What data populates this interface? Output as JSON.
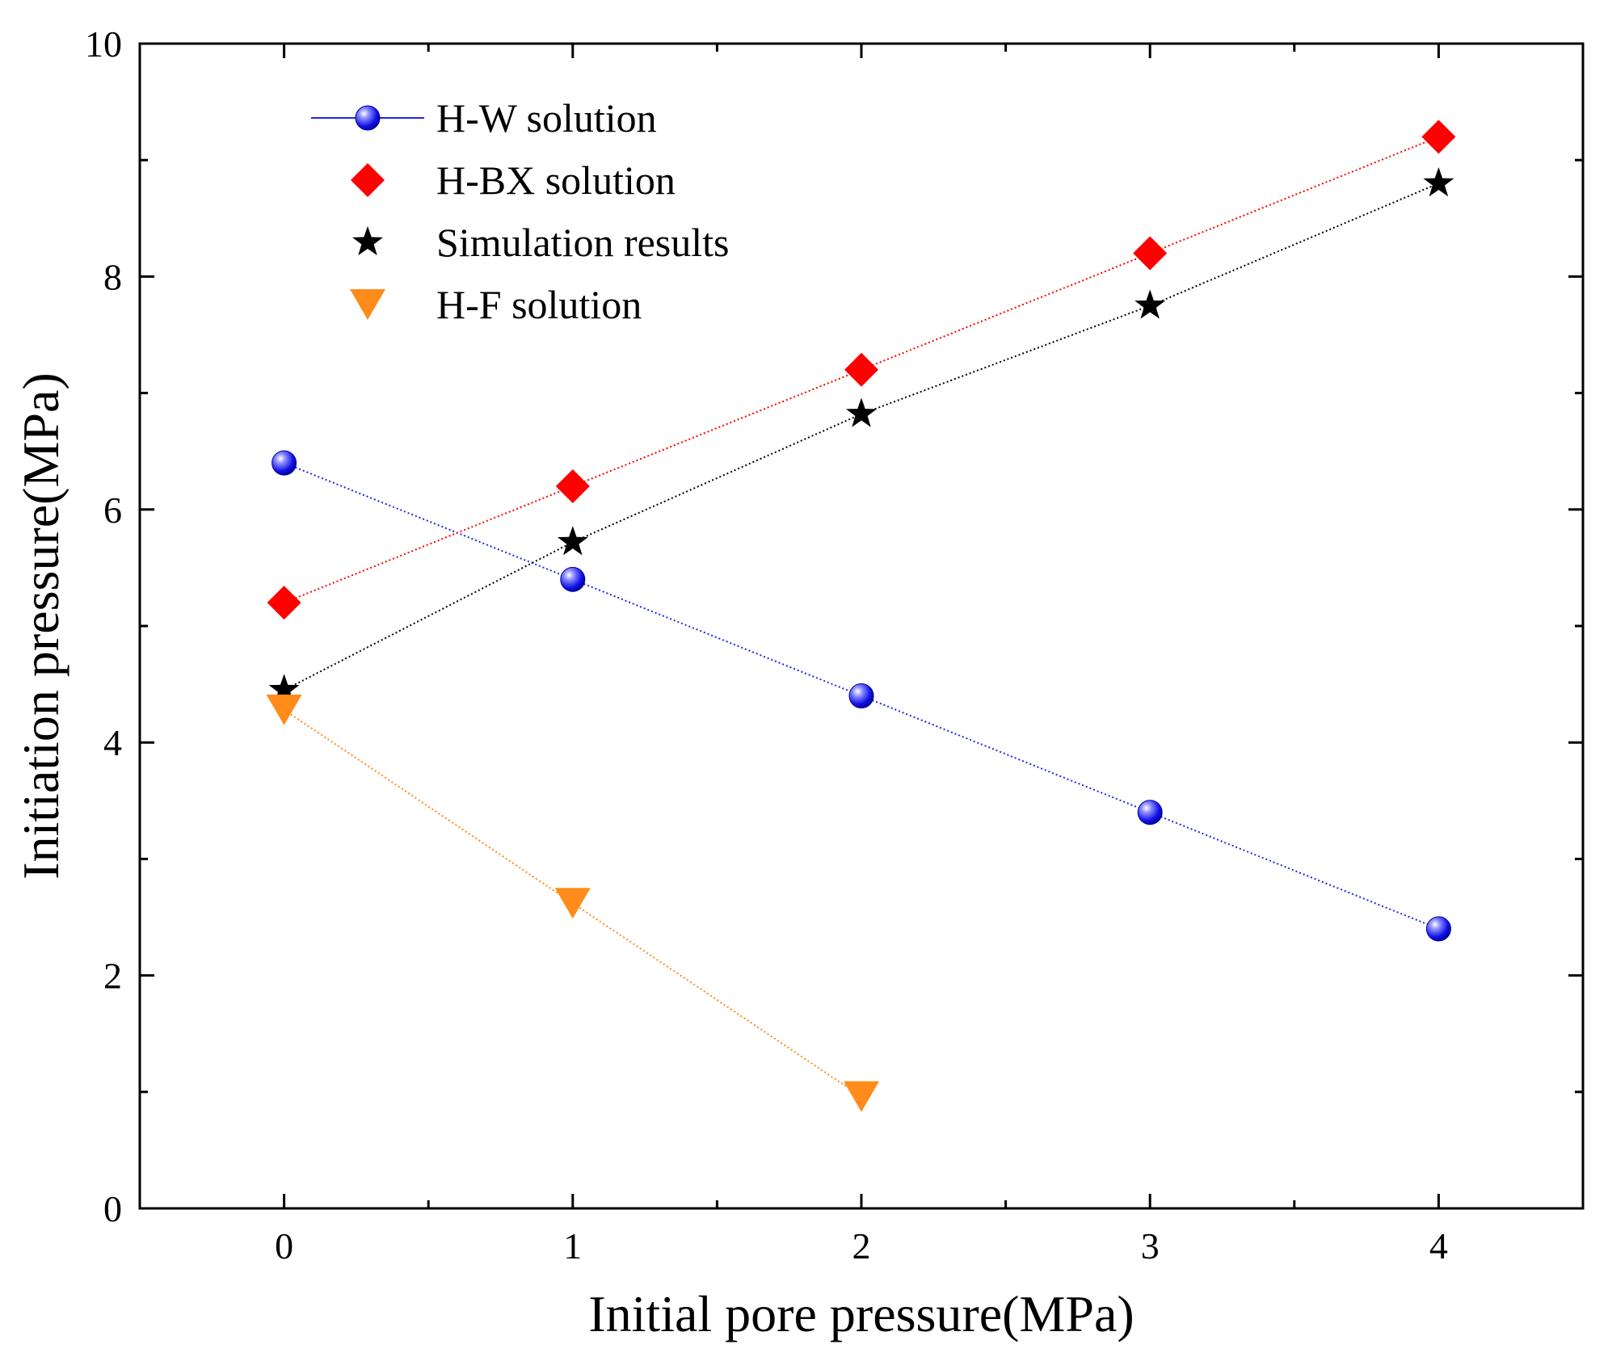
{
  "chart_data": {
    "type": "line",
    "title": "",
    "xlabel": "Initial pore pressure(MPa)",
    "ylabel": "Initiation pressure(MPa)",
    "xlim": [
      -0.5,
      4.5
    ],
    "ylim": [
      0,
      10
    ],
    "xticks": [
      0,
      1,
      2,
      3,
      4
    ],
    "xtick_labels": [
      "0",
      "1",
      "2",
      "3",
      "4"
    ],
    "yticks": [
      0,
      2,
      4,
      6,
      8,
      10
    ],
    "ytick_labels": [
      "0",
      "2",
      "4",
      "6",
      "8",
      "10"
    ],
    "grid": false,
    "legend_position": "top-left",
    "series": [
      {
        "name": "H-W solution",
        "marker": "sphere",
        "color": "#1a1aff",
        "line_color": "#2222ee",
        "x": [
          0,
          1,
          2,
          3,
          4
        ],
        "values": [
          6.4,
          5.4,
          4.4,
          3.4,
          2.4
        ]
      },
      {
        "name": "H-BX solution",
        "marker": "diamond",
        "color": "#ff0000",
        "line_color": "#ff0000",
        "x": [
          0,
          1,
          2,
          3,
          4
        ],
        "values": [
          5.2,
          6.2,
          7.2,
          8.2,
          9.2
        ]
      },
      {
        "name": "Simulation results",
        "marker": "star",
        "color": "#000000",
        "line_color": "#000000",
        "x": [
          0,
          1,
          2,
          3,
          4
        ],
        "values": [
          4.45,
          5.72,
          6.82,
          7.75,
          8.8
        ]
      },
      {
        "name": "H-F solution",
        "marker": "triangle-down",
        "color": "#ff8c1a",
        "line_color": "#ff8c1a",
        "x": [
          0,
          1,
          2
        ],
        "values": [
          4.28,
          2.62,
          0.96
        ]
      }
    ]
  }
}
